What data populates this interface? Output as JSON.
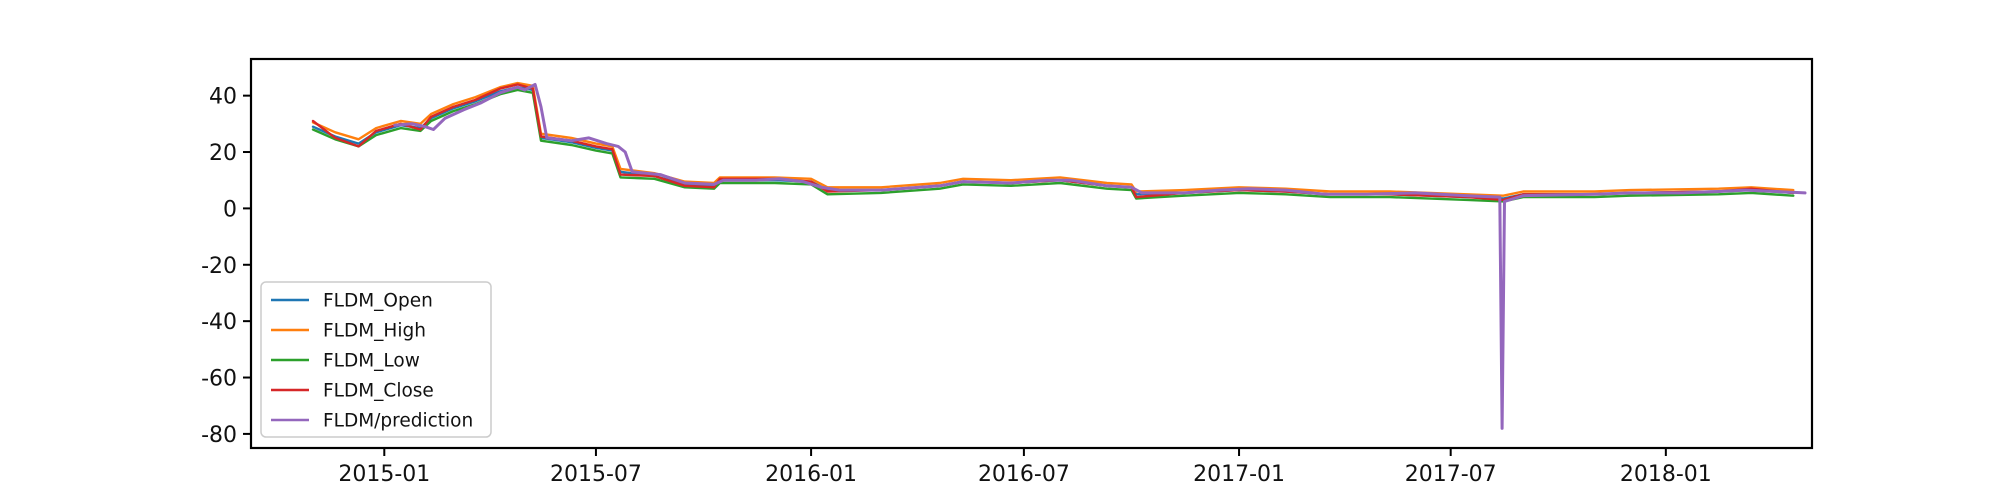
{
  "chart_data": {
    "type": "line",
    "title": "",
    "xlabel": "",
    "ylabel": "",
    "x_axis": {
      "type": "date",
      "range": [
        "2014-09-09",
        "2018-05-06"
      ],
      "tick_labels": [
        "2015-01",
        "2015-07",
        "2016-01",
        "2016-07",
        "2017-01",
        "2017-07",
        "2018-01"
      ]
    },
    "ylim": [
      -85,
      53
    ],
    "y_ticks": [
      40,
      20,
      0,
      -20,
      -40,
      -60,
      -80
    ],
    "grid": false,
    "legend": {
      "placement": "lower-left"
    },
    "series": [
      {
        "name": "FLDM_Open",
        "color": "#1f77b4",
        "points": [
          [
            "2014-11-01",
            29
          ],
          [
            "2014-11-20",
            25.5
          ],
          [
            "2014-12-10",
            23
          ],
          [
            "2014-12-25",
            27
          ],
          [
            "2015-01-15",
            29.5
          ],
          [
            "2015-02-01",
            28.5
          ],
          [
            "2015-02-10",
            32
          ],
          [
            "2015-03-01",
            35.5
          ],
          [
            "2015-03-20",
            38
          ],
          [
            "2015-04-10",
            41.5
          ],
          [
            "2015-04-25",
            43
          ],
          [
            "2015-05-08",
            42
          ],
          [
            "2015-05-15",
            25
          ],
          [
            "2015-06-10",
            23.5
          ],
          [
            "2015-07-01",
            21.5
          ],
          [
            "2015-07-15",
            20.5
          ],
          [
            "2015-07-22",
            13
          ],
          [
            "2015-08-20",
            11.5
          ],
          [
            "2015-09-15",
            8.5
          ],
          [
            "2015-10-10",
            8
          ],
          [
            "2015-10-15",
            10
          ],
          [
            "2015-12-01",
            10
          ],
          [
            "2016-01-01",
            9.5
          ],
          [
            "2016-01-15",
            6.5
          ],
          [
            "2016-03-01",
            6.5
          ],
          [
            "2016-04-20",
            8
          ],
          [
            "2016-05-10",
            9.5
          ],
          [
            "2016-06-20",
            9
          ],
          [
            "2016-08-01",
            10
          ],
          [
            "2016-09-10",
            8
          ],
          [
            "2016-10-01",
            7.5
          ],
          [
            "2016-10-05",
            5
          ],
          [
            "2016-11-15",
            5.5
          ],
          [
            "2017-01-01",
            6.5
          ],
          [
            "2017-02-10",
            6
          ],
          [
            "2017-03-20",
            5
          ],
          [
            "2017-05-10",
            5
          ],
          [
            "2017-07-15",
            4
          ],
          [
            "2017-08-15",
            3.5
          ],
          [
            "2017-09-01",
            5
          ],
          [
            "2017-11-01",
            5
          ],
          [
            "2017-12-01",
            5.5
          ],
          [
            "2018-02-15",
            6
          ],
          [
            "2018-03-15",
            6.5
          ],
          [
            "2018-04-20",
            5.5
          ]
        ]
      },
      {
        "name": "FLDM_High",
        "color": "#ff7f0e",
        "points": [
          [
            "2014-11-01",
            30.5
          ],
          [
            "2014-11-20",
            27
          ],
          [
            "2014-12-10",
            24.5
          ],
          [
            "2014-12-25",
            28.5
          ],
          [
            "2015-01-15",
            31
          ],
          [
            "2015-02-01",
            30
          ],
          [
            "2015-02-10",
            33.5
          ],
          [
            "2015-03-01",
            37
          ],
          [
            "2015-03-20",
            39.5
          ],
          [
            "2015-04-10",
            43
          ],
          [
            "2015-04-25",
            44.5
          ],
          [
            "2015-05-08",
            43.5
          ],
          [
            "2015-05-15",
            26.5
          ],
          [
            "2015-06-10",
            25
          ],
          [
            "2015-07-01",
            23
          ],
          [
            "2015-07-15",
            22
          ],
          [
            "2015-07-22",
            14
          ],
          [
            "2015-08-20",
            12.5
          ],
          [
            "2015-09-15",
            9.5
          ],
          [
            "2015-10-10",
            9
          ],
          [
            "2015-10-15",
            11
          ],
          [
            "2015-12-01",
            11
          ],
          [
            "2016-01-01",
            10.5
          ],
          [
            "2016-01-15",
            7.5
          ],
          [
            "2016-03-01",
            7.5
          ],
          [
            "2016-04-20",
            9
          ],
          [
            "2016-05-10",
            10.5
          ],
          [
            "2016-06-20",
            10
          ],
          [
            "2016-08-01",
            11
          ],
          [
            "2016-09-10",
            9
          ],
          [
            "2016-10-01",
            8.5
          ],
          [
            "2016-10-05",
            6
          ],
          [
            "2016-11-15",
            6.5
          ],
          [
            "2017-01-01",
            7.5
          ],
          [
            "2017-02-10",
            7
          ],
          [
            "2017-03-20",
            6
          ],
          [
            "2017-05-10",
            6
          ],
          [
            "2017-07-15",
            5
          ],
          [
            "2017-08-15",
            4.5
          ],
          [
            "2017-09-01",
            6
          ],
          [
            "2017-11-01",
            6
          ],
          [
            "2017-12-01",
            6.5
          ],
          [
            "2018-02-15",
            7
          ],
          [
            "2018-03-15",
            7.5
          ],
          [
            "2018-04-20",
            6.5
          ]
        ]
      },
      {
        "name": "FLDM_Low",
        "color": "#2ca02c",
        "points": [
          [
            "2014-11-01",
            28
          ],
          [
            "2014-11-20",
            24.5
          ],
          [
            "2014-12-10",
            22
          ],
          [
            "2014-12-25",
            26
          ],
          [
            "2015-01-15",
            28.5
          ],
          [
            "2015-02-01",
            27.5
          ],
          [
            "2015-02-10",
            31
          ],
          [
            "2015-03-01",
            34.5
          ],
          [
            "2015-03-20",
            37
          ],
          [
            "2015-04-10",
            40.5
          ],
          [
            "2015-04-25",
            42
          ],
          [
            "2015-05-08",
            41
          ],
          [
            "2015-05-15",
            24
          ],
          [
            "2015-06-10",
            22.5
          ],
          [
            "2015-07-01",
            20.5
          ],
          [
            "2015-07-15",
            19.5
          ],
          [
            "2015-07-22",
            11
          ],
          [
            "2015-08-20",
            10.5
          ],
          [
            "2015-09-15",
            7.5
          ],
          [
            "2015-10-10",
            7
          ],
          [
            "2015-10-15",
            9
          ],
          [
            "2015-12-01",
            9
          ],
          [
            "2016-01-01",
            8.5
          ],
          [
            "2016-01-15",
            5
          ],
          [
            "2016-03-01",
            5.5
          ],
          [
            "2016-04-20",
            7
          ],
          [
            "2016-05-10",
            8.5
          ],
          [
            "2016-06-20",
            8
          ],
          [
            "2016-08-01",
            9
          ],
          [
            "2016-09-10",
            7
          ],
          [
            "2016-10-01",
            6.5
          ],
          [
            "2016-10-05",
            3.5
          ],
          [
            "2016-11-15",
            4.5
          ],
          [
            "2017-01-01",
            5.5
          ],
          [
            "2017-02-10",
            5
          ],
          [
            "2017-03-20",
            4
          ],
          [
            "2017-05-10",
            4
          ],
          [
            "2017-07-15",
            3
          ],
          [
            "2017-08-15",
            2.5
          ],
          [
            "2017-09-01",
            4
          ],
          [
            "2017-11-01",
            4
          ],
          [
            "2017-12-01",
            4.5
          ],
          [
            "2018-02-15",
            5
          ],
          [
            "2018-03-15",
            5.5
          ],
          [
            "2018-04-20",
            4.5
          ]
        ]
      },
      {
        "name": "FLDM_Close",
        "color": "#d62728",
        "points": [
          [
            "2014-11-01",
            31
          ],
          [
            "2014-11-20",
            25
          ],
          [
            "2014-12-10",
            22
          ],
          [
            "2014-12-25",
            27.5
          ],
          [
            "2015-01-15",
            30
          ],
          [
            "2015-02-01",
            28
          ],
          [
            "2015-02-10",
            32.5
          ],
          [
            "2015-03-01",
            36
          ],
          [
            "2015-03-20",
            38.5
          ],
          [
            "2015-04-10",
            42.5
          ],
          [
            "2015-04-25",
            44
          ],
          [
            "2015-05-08",
            42.5
          ],
          [
            "2015-05-15",
            25.5
          ],
          [
            "2015-06-10",
            24
          ],
          [
            "2015-07-01",
            22
          ],
          [
            "2015-07-15",
            21
          ],
          [
            "2015-07-22",
            12
          ],
          [
            "2015-08-20",
            11.5
          ],
          [
            "2015-09-15",
            8
          ],
          [
            "2015-10-10",
            7.5
          ],
          [
            "2015-10-15",
            10.5
          ],
          [
            "2015-12-01",
            10.5
          ],
          [
            "2016-01-01",
            9.5
          ],
          [
            "2016-01-15",
            6
          ],
          [
            "2016-03-01",
            6.5
          ],
          [
            "2016-04-20",
            8
          ],
          [
            "2016-05-10",
            9.5
          ],
          [
            "2016-06-20",
            9
          ],
          [
            "2016-08-01",
            10
          ],
          [
            "2016-09-10",
            8
          ],
          [
            "2016-10-01",
            7.5
          ],
          [
            "2016-10-05",
            4
          ],
          [
            "2016-11-15",
            5.5
          ],
          [
            "2017-01-01",
            6.5
          ],
          [
            "2017-02-10",
            6
          ],
          [
            "2017-03-20",
            5
          ],
          [
            "2017-05-10",
            5
          ],
          [
            "2017-07-15",
            4
          ],
          [
            "2017-08-15",
            3
          ],
          [
            "2017-09-01",
            5
          ],
          [
            "2017-11-01",
            5
          ],
          [
            "2017-12-01",
            5.5
          ],
          [
            "2018-02-15",
            6
          ],
          [
            "2018-03-15",
            7
          ],
          [
            "2018-04-20",
            5.5
          ]
        ]
      },
      {
        "name": "FLDM/prediction",
        "color": "#9467bd",
        "points": [
          [
            "2015-01-10",
            29.5
          ],
          [
            "2015-01-25",
            30
          ],
          [
            "2015-02-05",
            29
          ],
          [
            "2015-02-12",
            28
          ],
          [
            "2015-02-22",
            32
          ],
          [
            "2015-03-10",
            35
          ],
          [
            "2015-03-25",
            37.5
          ],
          [
            "2015-04-10",
            41
          ],
          [
            "2015-04-25",
            43
          ],
          [
            "2015-05-01",
            42
          ],
          [
            "2015-05-10",
            44
          ],
          [
            "2015-05-15",
            36
          ],
          [
            "2015-05-20",
            25
          ],
          [
            "2015-06-10",
            24
          ],
          [
            "2015-06-25",
            25
          ],
          [
            "2015-07-10",
            23
          ],
          [
            "2015-07-20",
            22
          ],
          [
            "2015-07-26",
            20
          ],
          [
            "2015-08-01",
            13
          ],
          [
            "2015-08-25",
            12
          ],
          [
            "2015-09-15",
            9
          ],
          [
            "2015-10-10",
            8.5
          ],
          [
            "2015-10-18",
            10
          ],
          [
            "2015-11-15",
            10
          ],
          [
            "2015-12-05",
            10.5
          ],
          [
            "2015-12-25",
            9.5
          ],
          [
            "2016-01-10",
            7.5
          ],
          [
            "2016-01-25",
            6.5
          ],
          [
            "2016-03-01",
            6.5
          ],
          [
            "2016-04-20",
            8
          ],
          [
            "2016-05-10",
            9.5
          ],
          [
            "2016-06-20",
            9
          ],
          [
            "2016-07-20",
            10
          ],
          [
            "2016-08-10",
            10
          ],
          [
            "2016-09-10",
            8
          ],
          [
            "2016-10-01",
            7.5
          ],
          [
            "2016-10-10",
            5.5
          ],
          [
            "2016-11-15",
            5.5
          ],
          [
            "2016-12-15",
            6.5
          ],
          [
            "2017-01-10",
            7
          ],
          [
            "2017-02-10",
            6.5
          ],
          [
            "2017-03-15",
            5
          ],
          [
            "2017-04-20",
            5
          ],
          [
            "2017-06-01",
            5.5
          ],
          [
            "2017-07-15",
            4.5
          ],
          [
            "2017-08-12",
            4
          ],
          [
            "2017-08-14",
            -78
          ],
          [
            "2017-08-16",
            2.5
          ],
          [
            "2017-09-01",
            4.5
          ],
          [
            "2017-11-01",
            5
          ],
          [
            "2017-12-01",
            5.5
          ],
          [
            "2018-01-15",
            5.5
          ],
          [
            "2018-02-15",
            6
          ],
          [
            "2018-03-10",
            6.5
          ],
          [
            "2018-04-05",
            6
          ],
          [
            "2018-04-30",
            5.5
          ]
        ]
      }
    ]
  }
}
